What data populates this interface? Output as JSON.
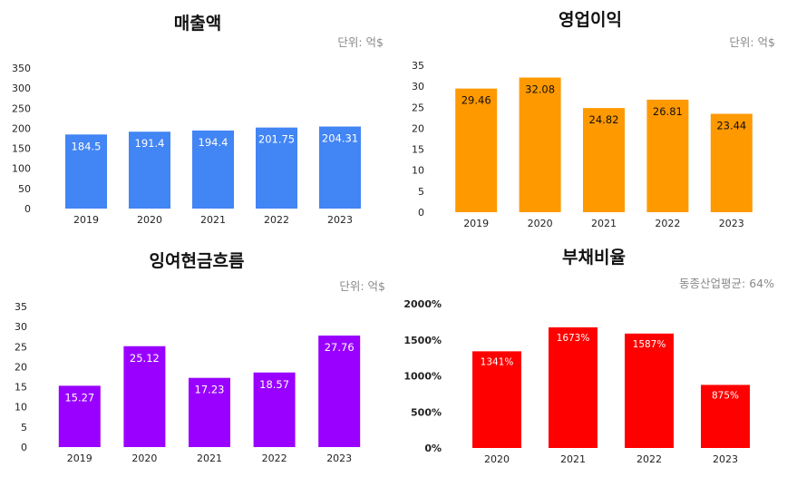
{
  "chart_data": [
    {
      "type": "bar",
      "title": "매출액",
      "unit_note": "단위: 억$",
      "categories": [
        "2019",
        "2020",
        "2021",
        "2022",
        "2023"
      ],
      "values": [
        184.5,
        191.4,
        194.4,
        201.75,
        204.31
      ],
      "value_labels": [
        "184.5",
        "191.4",
        "194.4",
        "201.75",
        "204.31"
      ],
      "ylim": [
        0,
        350
      ],
      "yticks": [
        "0",
        "50",
        "100",
        "150",
        "200",
        "250",
        "300",
        "350"
      ],
      "color": "#4285f4",
      "grid": false
    },
    {
      "type": "bar",
      "title": "영업이익",
      "unit_note": "단위: 억$",
      "categories": [
        "2019",
        "2020",
        "2021",
        "2022",
        "2023"
      ],
      "values": [
        29.46,
        32.08,
        24.82,
        26.81,
        23.44
      ],
      "value_labels": [
        "29.46",
        "32.08",
        "24.82",
        "26.81",
        "23.44"
      ],
      "ylim": [
        0,
        35
      ],
      "yticks": [
        "0",
        "5",
        "10",
        "15",
        "20",
        "25",
        "30",
        "35"
      ],
      "color": "#ff9900",
      "grid": false
    },
    {
      "type": "bar",
      "title": "잉여현금흐름",
      "unit_note": "단위: 억$",
      "categories": [
        "2019",
        "2020",
        "2021",
        "2022",
        "2023"
      ],
      "values": [
        15.27,
        25.12,
        17.23,
        18.57,
        27.76
      ],
      "value_labels": [
        "15.27",
        "25.12",
        "17.23",
        "18.57",
        "27.76"
      ],
      "ylim": [
        0,
        35
      ],
      "yticks": [
        "0",
        "5",
        "10",
        "15",
        "20",
        "25",
        "30",
        "35"
      ],
      "color": "#9900ff",
      "grid": false
    },
    {
      "type": "bar",
      "title": "부채비율",
      "unit_note": "동종산업평균: 64%",
      "categories": [
        "2020",
        "2021",
        "2022",
        "2023"
      ],
      "values": [
        1341,
        1673,
        1587,
        875
      ],
      "value_labels": [
        "1341%",
        "1673%",
        "1587%",
        "875%"
      ],
      "ylim": [
        0,
        2000
      ],
      "yticks": [
        "0%",
        "500%",
        "1000%",
        "1500%",
        "2000%"
      ],
      "color": "#ff0000",
      "grid": false
    }
  ]
}
